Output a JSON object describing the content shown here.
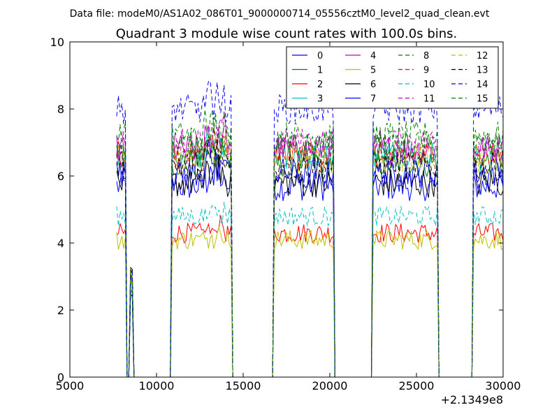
{
  "figure": {
    "suptitle": "Data file: modeM0/AS1A02_086T01_9000000714_05556cztM0_level2_quad_clean.evt"
  },
  "chart_data": {
    "type": "line",
    "title": "Quadrant 3 module wise count rates with 100.0s bins.",
    "xlabel": "",
    "ylabel": "",
    "xlim": [
      5000,
      30000
    ],
    "ylim": [
      0,
      10
    ],
    "x_offset_label": "+2.1349e8",
    "xticks": [
      5000,
      10000,
      15000,
      20000,
      25000,
      30000
    ],
    "xtick_labels": [
      "5000",
      "10000",
      "15000",
      "20000",
      "25000",
      "30000"
    ],
    "yticks": [
      0,
      2,
      4,
      6,
      8,
      10
    ],
    "ytick_labels": [
      "0",
      "2",
      "4",
      "6",
      "8",
      "10"
    ],
    "bin_seconds": 100,
    "segments": [
      {
        "x0": 7700,
        "x1": 8200,
        "on": true
      },
      {
        "x0": 8300,
        "x1": 8300,
        "on": false
      },
      {
        "x0": 8500,
        "x1": 8600,
        "on": true
      },
      {
        "x0": 8700,
        "x1": 10600,
        "on": false
      },
      {
        "x0": 10900,
        "x1": 14300,
        "on": true
      },
      {
        "x0": 14400,
        "x1": 16500,
        "on": false
      },
      {
        "x0": 16800,
        "x1": 20200,
        "on": true
      },
      {
        "x0": 20300,
        "x1": 22300,
        "on": false
      },
      {
        "x0": 22500,
        "x1": 26200,
        "on": true
      },
      {
        "x0": 26300,
        "x1": 28200,
        "on": false
      },
      {
        "x0": 28300,
        "x1": 30000,
        "on": true
      }
    ],
    "series": [
      {
        "name": "0",
        "color": "#0000ff",
        "dash": "solid",
        "level": 5.7
      },
      {
        "name": "1",
        "color": "#008000",
        "dash": "solid",
        "level": 6.4
      },
      {
        "name": "2",
        "color": "#ff0000",
        "dash": "solid",
        "level": 4.3
      },
      {
        "name": "3",
        "color": "#00bfbf",
        "dash": "solid",
        "level": 6.6
      },
      {
        "name": "4",
        "color": "#bf00bf",
        "dash": "solid",
        "level": 6.8
      },
      {
        "name": "5",
        "color": "#bfbf00",
        "dash": "solid",
        "level": 4.1
      },
      {
        "name": "6",
        "color": "#000000",
        "dash": "solid",
        "level": 5.8
      },
      {
        "name": "7",
        "color": "#0000ff",
        "dash": "solid",
        "level": 6.1
      },
      {
        "name": "8",
        "color": "#008000",
        "dash": "dashed",
        "level": 7.2
      },
      {
        "name": "9",
        "color": "#ff0000",
        "dash": "dashed",
        "level": 6.6
      },
      {
        "name": "10",
        "color": "#00bfbf",
        "dash": "dashed",
        "level": 4.8
      },
      {
        "name": "11",
        "color": "#bf00bf",
        "dash": "dashed",
        "level": 7.0
      },
      {
        "name": "12",
        "color": "#bfbf00",
        "dash": "dashed",
        "level": 6.5
      },
      {
        "name": "13",
        "color": "#000000",
        "dash": "dashed",
        "level": 6.3
      },
      {
        "name": "14",
        "color": "#0000ff",
        "dash": "dashed",
        "level": 8.0
      },
      {
        "name": "15",
        "color": "#008000",
        "dash": "dashed",
        "level": 6.9
      }
    ],
    "legend": {
      "position": "top-right",
      "columns": 4
    }
  }
}
